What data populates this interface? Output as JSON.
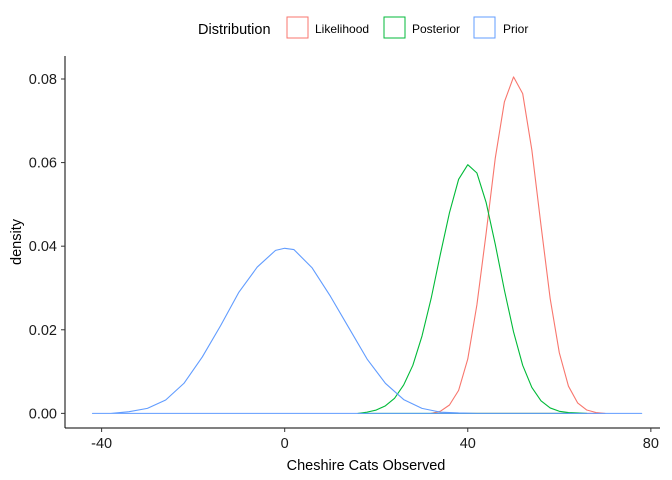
{
  "chart_data": {
    "type": "line",
    "title": "",
    "xlabel": "Cheshire Cats Observed",
    "ylabel": "density",
    "xlim": [
      -48,
      82
    ],
    "ylim": [
      -0.0035,
      0.0855
    ],
    "xticks": [
      -40,
      0,
      40,
      80
    ],
    "xtick_labels": [
      "-40",
      "0",
      "40",
      "80"
    ],
    "yticks": [
      0.0,
      0.02,
      0.04,
      0.06,
      0.08
    ],
    "ytick_labels": [
      "0.00",
      "0.02",
      "0.04",
      "0.06",
      "0.08"
    ],
    "grid": false,
    "legend": {
      "title": "Distribution",
      "position": "top",
      "entries": [
        "Likelihood",
        "Posterior",
        "Prior"
      ]
    },
    "series": [
      {
        "name": "Likelihood",
        "color": "#F8766D",
        "x": [
          32,
          34,
          36,
          38,
          40,
          42,
          44,
          46,
          48,
          50,
          52,
          54,
          56,
          58,
          60,
          62,
          64,
          66,
          68,
          70
        ],
        "y": [
          0.0,
          0.0005,
          0.002,
          0.0055,
          0.013,
          0.026,
          0.043,
          0.061,
          0.0745,
          0.0805,
          0.0765,
          0.063,
          0.045,
          0.0275,
          0.0145,
          0.0065,
          0.0025,
          0.0008,
          0.0002,
          0.0
        ]
      },
      {
        "name": "Posterior",
        "color": "#00BA38",
        "x": [
          16,
          18,
          20,
          22,
          24,
          26,
          28,
          30,
          32,
          34,
          36,
          38,
          40,
          42,
          44,
          46,
          48,
          50,
          52,
          54,
          56,
          58,
          60,
          62,
          64,
          66
        ],
        "y": [
          0.0,
          0.0003,
          0.0008,
          0.0018,
          0.0036,
          0.0068,
          0.0115,
          0.0185,
          0.0275,
          0.038,
          0.048,
          0.056,
          0.0595,
          0.0575,
          0.0505,
          0.0405,
          0.0295,
          0.0195,
          0.0115,
          0.0062,
          0.003,
          0.0013,
          0.0005,
          0.0002,
          0.0001,
          0.0
        ]
      },
      {
        "name": "Prior",
        "color": "#619CFF",
        "x": [
          -42,
          -38,
          -34,
          -30,
          -26,
          -22,
          -18,
          -14,
          -10,
          -6,
          -2,
          0,
          2,
          6,
          10,
          14,
          18,
          22,
          26,
          30,
          34,
          38,
          42,
          46,
          50,
          54,
          58,
          62,
          66,
          70,
          74,
          78
        ],
        "y": [
          0.0,
          0.0,
          0.0004,
          0.0012,
          0.0032,
          0.0072,
          0.0135,
          0.021,
          0.029,
          0.035,
          0.039,
          0.0395,
          0.0392,
          0.0348,
          0.028,
          0.0205,
          0.013,
          0.0072,
          0.0033,
          0.0012,
          0.0003,
          0.0001,
          0.0,
          0.0,
          0.0,
          0.0,
          0.0,
          0.0,
          0.0,
          0.0,
          0.0,
          0.0
        ]
      }
    ]
  }
}
